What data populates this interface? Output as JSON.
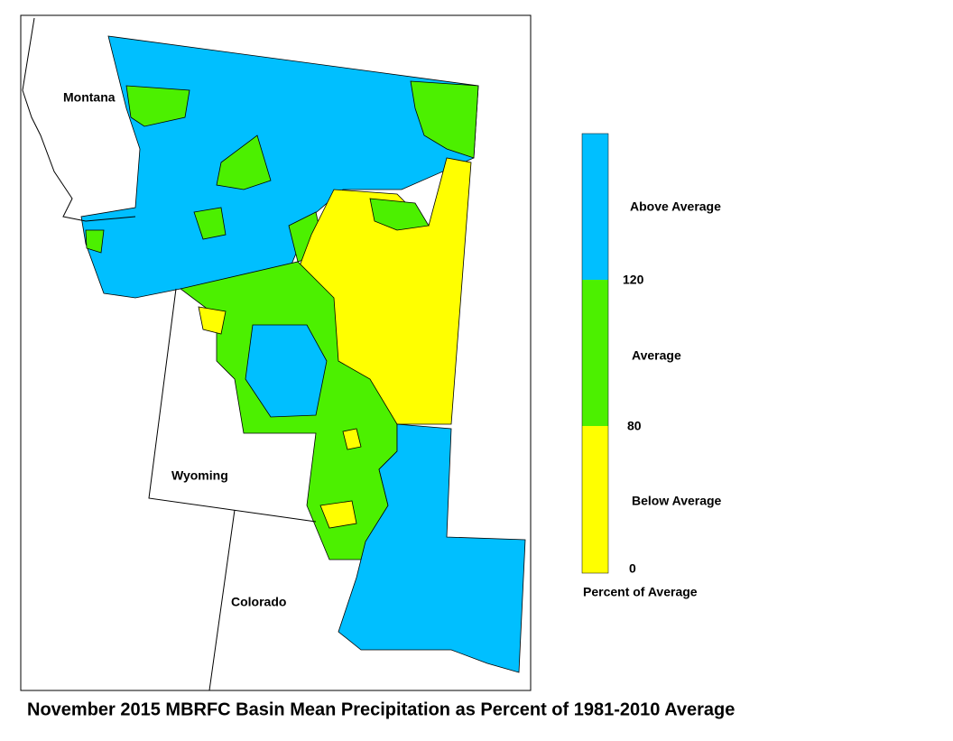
{
  "map": {
    "states": [
      "Montana",
      "Wyoming",
      "Colorado"
    ],
    "caption": "November 2015 MBRFC Basin Mean Precipitation as Percent of 1981-2010 Average"
  },
  "legend": {
    "title": "Percent of Average",
    "classes": [
      {
        "label": "Above Average",
        "color": "#00bfff"
      },
      {
        "label": "Average",
        "color": "#4cf000"
      },
      {
        "label": "Below Average",
        "color": "#ffff00"
      }
    ],
    "breaks": [
      120,
      80,
      0
    ]
  }
}
